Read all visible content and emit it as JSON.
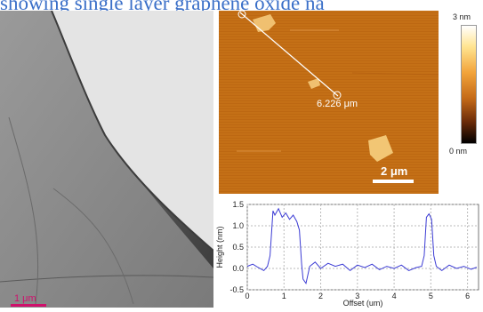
{
  "header": {
    "title_fragment": "showing single layer graphene oxide na"
  },
  "tem_image": {
    "scale_label": "1 μm"
  },
  "afm_image": {
    "distance_label": "6.226 μm",
    "scale_label": "2 μm"
  },
  "colorbar": {
    "max_label": "3 nm",
    "min_label": "0 nm"
  },
  "chart_data": {
    "type": "line",
    "xlabel": "Offset (um)",
    "ylabel": "Height (nm)",
    "xlim": [
      0,
      6.3
    ],
    "ylim": [
      -0.5,
      1.5
    ],
    "xticks": [
      0,
      1,
      2,
      3,
      4,
      5,
      6
    ],
    "yticks": [
      -0.5,
      0.0,
      0.5,
      1.0,
      1.5
    ],
    "grid": true,
    "series": [
      {
        "color": "#3b3bd4",
        "x": [
          0.0,
          0.15,
          0.3,
          0.45,
          0.55,
          0.62,
          0.7,
          0.75,
          0.85,
          0.95,
          1.05,
          1.15,
          1.25,
          1.35,
          1.42,
          1.48,
          1.52,
          1.6,
          1.7,
          1.85,
          2.0,
          2.2,
          2.4,
          2.6,
          2.8,
          3.0,
          3.2,
          3.4,
          3.6,
          3.8,
          4.0,
          4.2,
          4.4,
          4.6,
          4.75,
          4.82,
          4.88,
          4.95,
          5.02,
          5.08,
          5.15,
          5.3,
          5.5,
          5.7,
          5.9,
          6.1,
          6.25
        ],
        "y": [
          0.05,
          0.1,
          0.02,
          -0.05,
          0.05,
          0.3,
          1.35,
          1.25,
          1.4,
          1.2,
          1.3,
          1.15,
          1.25,
          1.1,
          0.9,
          0.1,
          -0.25,
          -0.35,
          0.05,
          0.15,
          0.0,
          0.12,
          0.05,
          0.1,
          -0.05,
          0.08,
          0.02,
          0.1,
          -0.03,
          0.05,
          0.0,
          0.08,
          -0.05,
          0.02,
          0.05,
          0.3,
          1.2,
          1.28,
          1.15,
          0.3,
          0.05,
          -0.05,
          0.08,
          0.0,
          0.05,
          -0.02,
          0.03
        ]
      }
    ]
  }
}
